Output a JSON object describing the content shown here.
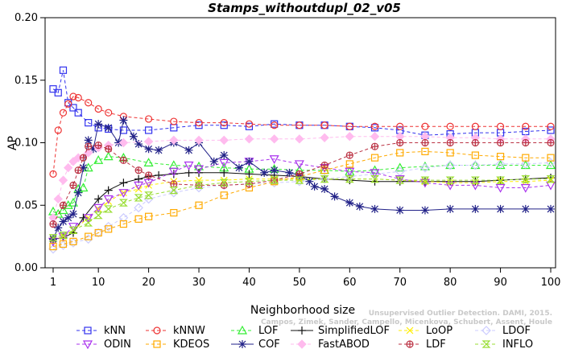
{
  "chart_data": {
    "type": "line",
    "title": "Stamps_withoutdupl_02_v05",
    "xlabel": "Neighborhood size",
    "ylabel": "AP",
    "xlim": [
      1,
      100
    ],
    "ylim": [
      0,
      0.2
    ],
    "x_ticks": [
      "1",
      "10",
      "20",
      "30",
      "40",
      "50",
      "60",
      "70",
      "80",
      "90",
      "100"
    ],
    "y_ticks": [
      "0.00",
      "0.05",
      "0.10",
      "0.15",
      "0.20"
    ],
    "watermark_lines": [
      "Unsupervised Outlier Detection. DAMI, 2015.",
      "Campos, Zimek, Sander, Campello, Micenkova, Schubert, Assent, Houle"
    ],
    "legend_position": "bottom",
    "series": [
      {
        "name": "kNN",
        "color": "#3333ee",
        "marker": "square",
        "dash": "4,3",
        "x": [
          1,
          2,
          3,
          4,
          5,
          6,
          8,
          10,
          12,
          15,
          20,
          25,
          30,
          35,
          40,
          45,
          50,
          55,
          60,
          65,
          70,
          75,
          80,
          85,
          90,
          95,
          100
        ],
        "values": [
          0.143,
          0.14,
          0.158,
          0.132,
          0.128,
          0.124,
          0.116,
          0.112,
          0.111,
          0.11,
          0.11,
          0.112,
          0.114,
          0.114,
          0.113,
          0.115,
          0.114,
          0.114,
          0.113,
          0.112,
          0.11,
          0.106,
          0.107,
          0.108,
          0.108,
          0.109,
          0.11
        ]
      },
      {
        "name": "kNNW",
        "color": "#ee3333",
        "marker": "circle",
        "dash": "4,3",
        "x": [
          1,
          2,
          3,
          4,
          5,
          6,
          8,
          10,
          12,
          15,
          20,
          25,
          30,
          35,
          40,
          45,
          50,
          55,
          60,
          65,
          70,
          75,
          80,
          85,
          90,
          95,
          100
        ],
        "values": [
          0.075,
          0.11,
          0.124,
          0.131,
          0.137,
          0.136,
          0.132,
          0.127,
          0.124,
          0.121,
          0.119,
          0.117,
          0.116,
          0.116,
          0.115,
          0.114,
          0.114,
          0.114,
          0.113,
          0.113,
          0.113,
          0.113,
          0.113,
          0.113,
          0.113,
          0.113,
          0.113
        ]
      },
      {
        "name": "LOF",
        "color": "#33ee33",
        "marker": "triangle-up",
        "dash": "4,3",
        "x": [
          1,
          2,
          3,
          4,
          5,
          6,
          7,
          8,
          10,
          12,
          15,
          20,
          25,
          30,
          35,
          40,
          45,
          50,
          55,
          60,
          65,
          70,
          75,
          80,
          85,
          90,
          95,
          100
        ],
        "values": [
          0.045,
          0.043,
          0.046,
          0.05,
          0.052,
          0.063,
          0.064,
          0.08,
          0.086,
          0.089,
          0.088,
          0.084,
          0.082,
          0.081,
          0.08,
          0.079,
          0.079,
          0.078,
          0.078,
          0.077,
          0.078,
          0.08,
          0.081,
          0.082,
          0.082,
          0.082,
          0.082,
          0.082
        ]
      },
      {
        "name": "SimplifiedLOF",
        "color": "#111111",
        "marker": "plus",
        "dash": "",
        "x": [
          1,
          3,
          5,
          7,
          10,
          12,
          15,
          18,
          20,
          22,
          25,
          28,
          30,
          35,
          40,
          45,
          50,
          55,
          60,
          65,
          70,
          75,
          80,
          85,
          90,
          95,
          100
        ],
        "values": [
          0.023,
          0.024,
          0.028,
          0.04,
          0.055,
          0.062,
          0.068,
          0.071,
          0.073,
          0.074,
          0.075,
          0.076,
          0.076,
          0.076,
          0.075,
          0.074,
          0.073,
          0.071,
          0.07,
          0.069,
          0.069,
          0.069,
          0.069,
          0.069,
          0.07,
          0.071,
          0.072
        ]
      },
      {
        "name": "LoOP",
        "color": "#ffee00",
        "marker": "x",
        "dash": "4,3",
        "x": [
          1,
          3,
          5,
          8,
          10,
          12,
          15,
          18,
          20,
          25,
          30,
          35,
          40,
          45,
          50,
          55,
          60,
          65,
          70,
          75,
          80,
          85,
          90,
          95,
          100
        ],
        "values": [
          0.022,
          0.025,
          0.03,
          0.04,
          0.047,
          0.053,
          0.06,
          0.063,
          0.066,
          0.069,
          0.07,
          0.07,
          0.071,
          0.071,
          0.071,
          0.071,
          0.071,
          0.071,
          0.07,
          0.069,
          0.068,
          0.068,
          0.069,
          0.069,
          0.07
        ]
      },
      {
        "name": "LDOF",
        "color": "#ccccff",
        "marker": "diamond",
        "dash": "4,3",
        "x": [
          1,
          3,
          5,
          8,
          10,
          12,
          15,
          18,
          20,
          25,
          30,
          35,
          40,
          45,
          50,
          55,
          60,
          65,
          70,
          75,
          80,
          85,
          90,
          95,
          100
        ],
        "values": [
          0.015,
          0.018,
          0.02,
          0.023,
          0.028,
          0.033,
          0.04,
          0.048,
          0.055,
          0.06,
          0.064,
          0.066,
          0.067,
          0.068,
          0.069,
          0.071,
          0.073,
          0.075,
          0.077,
          0.08,
          0.082,
          0.082,
          0.083,
          0.083,
          0.084
        ]
      },
      {
        "name": "ODIN",
        "color": "#aa33ee",
        "marker": "triangle-down",
        "dash": "4,3",
        "x": [
          1,
          3,
          5,
          8,
          10,
          12,
          15,
          18,
          20,
          25,
          28,
          30,
          35,
          40,
          45,
          50,
          55,
          60,
          65,
          70,
          75,
          80,
          85,
          90,
          95,
          100
        ],
        "values": [
          0.021,
          0.025,
          0.033,
          0.04,
          0.048,
          0.055,
          0.06,
          0.066,
          0.068,
          0.077,
          0.082,
          0.079,
          0.084,
          0.085,
          0.087,
          0.083,
          0.08,
          0.077,
          0.076,
          0.071,
          0.068,
          0.066,
          0.066,
          0.064,
          0.064,
          0.066
        ]
      },
      {
        "name": "KDEOS",
        "color": "#ffaa00",
        "marker": "square",
        "dash": "4,3",
        "x": [
          1,
          3,
          5,
          8,
          10,
          12,
          15,
          18,
          20,
          25,
          30,
          35,
          40,
          45,
          50,
          55,
          60,
          65,
          70,
          75,
          80,
          85,
          90,
          95,
          100
        ],
        "values": [
          0.017,
          0.019,
          0.021,
          0.025,
          0.028,
          0.031,
          0.035,
          0.039,
          0.041,
          0.044,
          0.05,
          0.058,
          0.064,
          0.069,
          0.073,
          0.078,
          0.083,
          0.088,
          0.092,
          0.093,
          0.092,
          0.09,
          0.089,
          0.088,
          0.088
        ]
      },
      {
        "name": "COF",
        "color": "#222288",
        "marker": "asterisk",
        "dash": "",
        "x": [
          1,
          2,
          3,
          4,
          5,
          6,
          7,
          8,
          9,
          10,
          12,
          14,
          15,
          17,
          18,
          20,
          22,
          25,
          28,
          30,
          33,
          35,
          38,
          40,
          43,
          45,
          48,
          50,
          52,
          53,
          55,
          57,
          60,
          62,
          65,
          70,
          75,
          80,
          85,
          90,
          95,
          100
        ],
        "values": [
          0.023,
          0.032,
          0.037,
          0.04,
          0.043,
          0.06,
          0.08,
          0.102,
          0.095,
          0.115,
          0.112,
          0.1,
          0.118,
          0.105,
          0.099,
          0.095,
          0.094,
          0.1,
          0.094,
          0.1,
          0.085,
          0.09,
          0.08,
          0.085,
          0.076,
          0.078,
          0.076,
          0.074,
          0.069,
          0.065,
          0.063,
          0.057,
          0.052,
          0.049,
          0.047,
          0.046,
          0.046,
          0.047,
          0.047,
          0.047,
          0.047,
          0.047
        ]
      },
      {
        "name": "FastABOD",
        "color": "#ffbbee",
        "marker": "diamond-filled",
        "dash": "4,3",
        "x": [
          1,
          2,
          3,
          4,
          5,
          6,
          8,
          10,
          12,
          15,
          20,
          25,
          30,
          35,
          40,
          45,
          50,
          55,
          60,
          65,
          70,
          75,
          80,
          85,
          90,
          95,
          100
        ],
        "values": [
          0.04,
          0.055,
          0.07,
          0.08,
          0.085,
          0.088,
          0.092,
          0.096,
          0.098,
          0.1,
          0.101,
          0.102,
          0.102,
          0.102,
          0.103,
          0.103,
          0.103,
          0.104,
          0.105,
          0.105,
          0.105,
          0.105,
          0.104,
          0.104,
          0.103,
          0.103,
          0.103
        ]
      },
      {
        "name": "LDF",
        "color": "#bb3344",
        "marker": "circle-plus",
        "dash": "4,3",
        "x": [
          1,
          3,
          5,
          6,
          7,
          8,
          10,
          12,
          15,
          18,
          20,
          25,
          30,
          35,
          40,
          45,
          50,
          55,
          60,
          65,
          70,
          75,
          80,
          85,
          90,
          95,
          100
        ],
        "values": [
          0.035,
          0.05,
          0.066,
          0.078,
          0.088,
          0.097,
          0.098,
          0.095,
          0.086,
          0.078,
          0.074,
          0.067,
          0.066,
          0.066,
          0.067,
          0.07,
          0.075,
          0.082,
          0.09,
          0.097,
          0.1,
          0.1,
          0.1,
          0.1,
          0.1,
          0.1,
          0.1
        ]
      },
      {
        "name": "INFLO",
        "color": "#99dd33",
        "marker": "hourglass",
        "dash": "4,3",
        "x": [
          1,
          3,
          5,
          8,
          10,
          12,
          15,
          18,
          20,
          25,
          30,
          35,
          40,
          45,
          50,
          55,
          60,
          65,
          70,
          75,
          80,
          85,
          90,
          95,
          100
        ],
        "values": [
          0.024,
          0.026,
          0.03,
          0.036,
          0.042,
          0.047,
          0.052,
          0.056,
          0.058,
          0.062,
          0.066,
          0.068,
          0.069,
          0.07,
          0.07,
          0.071,
          0.071,
          0.071,
          0.07,
          0.07,
          0.07,
          0.07,
          0.07,
          0.071,
          0.071
        ]
      }
    ]
  }
}
